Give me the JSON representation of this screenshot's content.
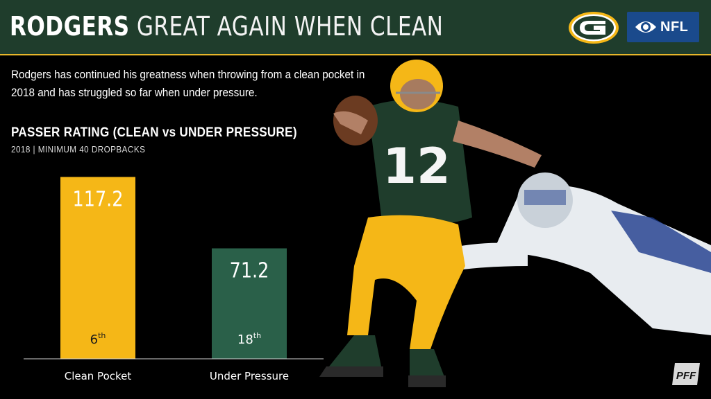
{
  "header": {
    "title_bold": "RODGERS",
    "title_rest": "GREAT AGAIN WHEN CLEAN",
    "background": "#1f3d2c",
    "accent": "#e8b62b"
  },
  "logos": {
    "team_icon": "packers-g-logo",
    "network_icon": "cbs-eye-logo",
    "network_text": "NFL",
    "brand_icon": "pff-logo"
  },
  "intro_text": "Rodgers has continued his greatness when throwing from a clean pocket in 2018 and has struggled so far when under pressure.",
  "chart_data": {
    "type": "bar",
    "title": "PASSER RATING (CLEAN vs UNDER PRESSURE)",
    "subtitle": "2018 | MINIMUM 40 DROPBACKS",
    "categories": [
      "Clean Pocket",
      "Under Pressure"
    ],
    "values": [
      117.2,
      71.2
    ],
    "value_labels": [
      "117.2",
      "71.2"
    ],
    "rank_labels": [
      {
        "number": "6",
        "suffix": "th"
      },
      {
        "number": "18",
        "suffix": "th"
      }
    ],
    "colors": [
      "#f5b717",
      "#2a6049"
    ],
    "ylim": [
      0,
      125
    ],
    "grid": false,
    "xlabel": "",
    "ylabel": ""
  }
}
